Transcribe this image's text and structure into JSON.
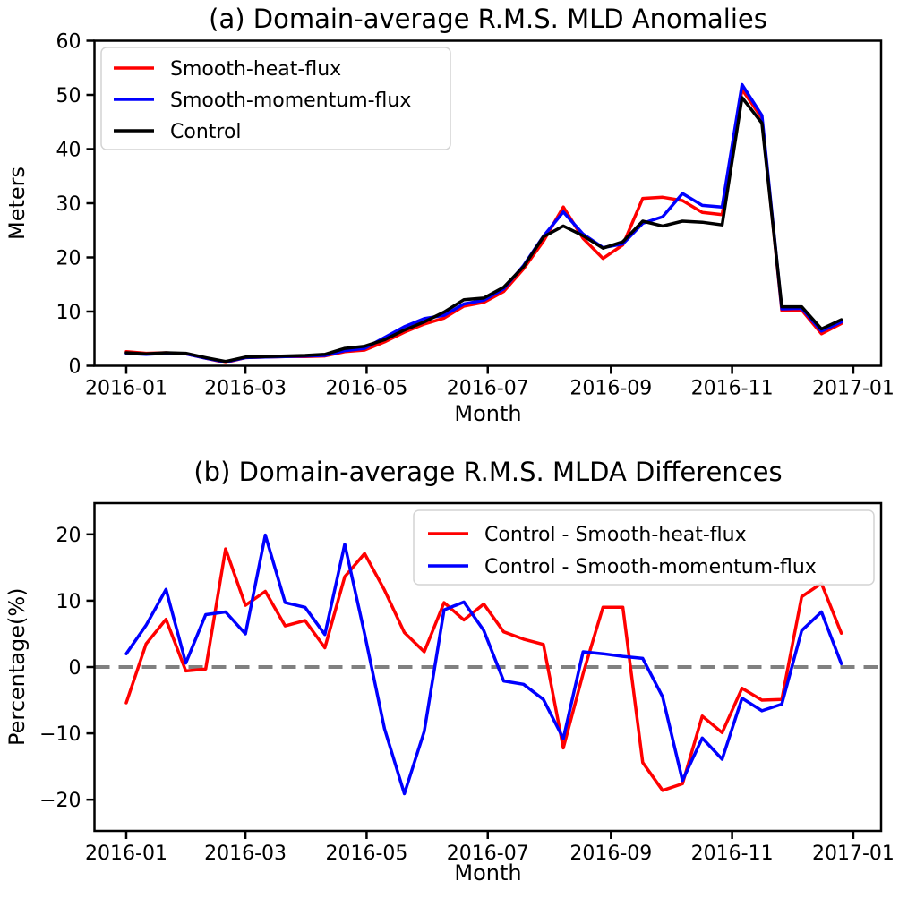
{
  "page": {
    "background": "#ffffff"
  },
  "chart_data": [
    {
      "type": "line",
      "panel": "a",
      "title": "(a) Domain-average R.M.S. MLD Anomalies",
      "xlabel": "Month",
      "ylabel": "Meters",
      "x_unit": "days since 2016-01-01, 10-day interval",
      "x": [
        0,
        10,
        20,
        30,
        40,
        50,
        60,
        70,
        80,
        90,
        100,
        110,
        120,
        130,
        140,
        150,
        160,
        170,
        180,
        190,
        200,
        210,
        220,
        230,
        240,
        250,
        260,
        270,
        280,
        290,
        300,
        310,
        320,
        330,
        340,
        350,
        360
      ],
      "xlim": [
        -16,
        380
      ],
      "ylim": [
        0,
        60
      ],
      "yticks": [
        0,
        10,
        20,
        30,
        40,
        50,
        60
      ],
      "xticks": {
        "days": [
          0,
          60,
          121,
          182,
          244,
          305,
          366
        ],
        "labels": [
          "2016-01",
          "2016-03",
          "2016-05",
          "2016-07",
          "2016-09",
          "2016-11",
          "2017-01"
        ]
      },
      "grid": false,
      "legend_position": "upper-left",
      "series": [
        {
          "name": "Smooth-heat-flux",
          "color": "#ff0000",
          "values": [
            2.6,
            2.3,
            2.4,
            2.2,
            1.4,
            0.6,
            1.5,
            1.6,
            1.7,
            1.7,
            1.8,
            2.6,
            2.9,
            4.4,
            6.2,
            7.7,
            8.8,
            11.0,
            11.7,
            13.7,
            17.9,
            23.0,
            29.3,
            23.5,
            19.8,
            22.3,
            30.9,
            31.1,
            30.5,
            28.3,
            27.9,
            51.0,
            45.7,
            10.2,
            10.3,
            5.9,
            7.8
          ]
        },
        {
          "name": "Smooth-momentum-flux",
          "color": "#0000ff",
          "values": [
            2.3,
            2.1,
            2.3,
            2.2,
            1.4,
            0.7,
            1.5,
            1.6,
            1.7,
            1.8,
            1.9,
            2.8,
            3.2,
            5.2,
            7.2,
            8.7,
            9.3,
            11.4,
            12.1,
            14.2,
            18.5,
            23.9,
            28.4,
            24.3,
            21.8,
            22.5,
            26.3,
            27.5,
            31.8,
            29.6,
            29.3,
            51.9,
            46.2,
            10.5,
            10.6,
            6.4,
            8.1
          ]
        },
        {
          "name": "Control",
          "color": "#000000",
          "values": [
            2.4,
            2.2,
            2.4,
            2.3,
            1.5,
            0.8,
            1.6,
            1.7,
            1.8,
            1.9,
            2.1,
            3.2,
            3.6,
            4.8,
            6.6,
            8.1,
            9.9,
            12.2,
            12.5,
            14.5,
            18.3,
            23.8,
            25.8,
            24.0,
            21.7,
            22.9,
            26.7,
            25.8,
            26.7,
            26.5,
            26.0,
            49.5,
            44.8,
            10.9,
            10.9,
            6.8,
            8.5
          ]
        }
      ]
    },
    {
      "type": "line",
      "panel": "b",
      "title": "(b) Domain-average R.M.S. MLDA Differences",
      "xlabel": "Month",
      "ylabel": "Percentage(%)",
      "x_unit": "days since 2016-01-01, 10-day interval",
      "x": [
        0,
        10,
        20,
        30,
        40,
        50,
        60,
        70,
        80,
        90,
        100,
        110,
        120,
        130,
        140,
        150,
        160,
        170,
        180,
        190,
        200,
        210,
        220,
        230,
        240,
        250,
        260,
        270,
        280,
        290,
        300,
        310,
        320,
        330,
        340,
        350,
        360
      ],
      "xlim": [
        -16,
        380
      ],
      "ylim": [
        -24.7,
        24.7
      ],
      "yticks": [
        -20,
        -10,
        0,
        10,
        20
      ],
      "xticks": {
        "days": [
          0,
          60,
          121,
          182,
          244,
          305,
          366
        ],
        "labels": [
          "2016-01",
          "2016-03",
          "2016-05",
          "2016-07",
          "2016-09",
          "2016-11",
          "2017-01"
        ]
      },
      "grid": false,
      "zero_line": {
        "color": "#808080",
        "width": 4,
        "dash": [
          16,
          10
        ]
      },
      "legend_position": "upper-right",
      "series": [
        {
          "name": "Control - Smooth-heat-flux",
          "color": "#ff0000",
          "values": [
            -5.4,
            3.5,
            7.2,
            -0.6,
            -0.3,
            17.8,
            9.3,
            11.4,
            6.2,
            7.0,
            2.9,
            13.6,
            17.1,
            11.6,
            5.2,
            2.3,
            9.7,
            7.1,
            9.5,
            5.3,
            4.2,
            3.4,
            -12.2,
            -1.0,
            9.0,
            9.0,
            -14.4,
            -18.6,
            -17.6,
            -7.4,
            -9.9,
            -3.2,
            -5.0,
            -4.9,
            10.6,
            12.6,
            5.1
          ]
        },
        {
          "name": "Control - Smooth-momentum-flux",
          "color": "#0000ff",
          "values": [
            2.0,
            6.3,
            11.7,
            0.6,
            7.9,
            8.3,
            5.0,
            19.9,
            9.7,
            9.0,
            4.9,
            18.5,
            5.0,
            -9.3,
            -19.1,
            -9.7,
            8.6,
            9.8,
            5.5,
            -2.1,
            -2.6,
            -4.9,
            -10.8,
            2.3,
            2.0,
            1.6,
            1.3,
            -4.5,
            -17.1,
            -10.7,
            -13.9,
            -4.7,
            -6.6,
            -5.6,
            5.5,
            8.3,
            0.5
          ]
        }
      ]
    }
  ]
}
